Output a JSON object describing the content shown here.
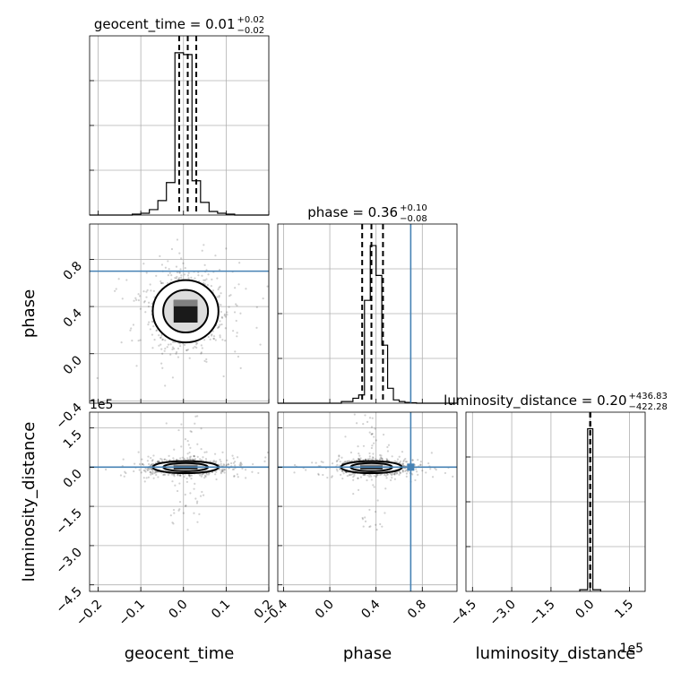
{
  "chart_data": {
    "type": "corner",
    "parameters": [
      "geocent_time",
      "phase",
      "luminosity_distance"
    ],
    "truth_color": "#4682b4",
    "truths": {
      "geocent_time": null,
      "phase": 0.7,
      "luminosity_distance": 0
    },
    "panels": {
      "geocent_time_hist": {
        "title_main": "geocent_time = 0.01",
        "title_sup": "+0.02",
        "title_sub": "−0.02",
        "xlim": [
          -0.22,
          0.2
        ],
        "bins_edges": [
          -0.22,
          -0.2,
          -0.18,
          -0.16,
          -0.14,
          -0.12,
          -0.1,
          -0.08,
          -0.06,
          -0.04,
          -0.02,
          0.0,
          0.02,
          0.04,
          0.06,
          0.08,
          0.1,
          0.12,
          0.14,
          0.16,
          0.18,
          0.2
        ],
        "counts": [
          0,
          0,
          0,
          0,
          0,
          0.5,
          1,
          3,
          8,
          18,
          90,
          89,
          19,
          7,
          2,
          1,
          0.5,
          0,
          0,
          0,
          0
        ],
        "ymax": 92,
        "quantiles": [
          -0.01,
          0.01,
          0.03
        ]
      },
      "phase_hist": {
        "title_main": "phase = 0.36",
        "title_sup": "+0.10",
        "title_sub": "−0.08",
        "xlim": [
          -0.45,
          1.1
        ],
        "bins_edges": [
          -0.45,
          -0.4,
          -0.35,
          -0.3,
          -0.25,
          -0.2,
          -0.15,
          -0.1,
          -0.05,
          0.0,
          0.05,
          0.1,
          0.15,
          0.2,
          0.25,
          0.3,
          0.35,
          0.4,
          0.45,
          0.5,
          0.55,
          0.6,
          0.65,
          0.7,
          0.75,
          0.8,
          0.85,
          0.9,
          0.95,
          1.0,
          1.05,
          1.1
        ],
        "counts": [
          0,
          0,
          0,
          0,
          0,
          0,
          0,
          0,
          0,
          0,
          0,
          1,
          1,
          3,
          5,
          62,
          95,
          77,
          35,
          9,
          2,
          1,
          0.5,
          0.3,
          0,
          0,
          0,
          0,
          0,
          0,
          0
        ],
        "ymax": 100,
        "quantiles": [
          0.28,
          0.36,
          0.46
        ]
      },
      "lumdist_hist": {
        "title_main": "luminosity_distance = 0.20",
        "title_sup": "+436.83",
        "title_sub": "−422.28",
        "xlim": [
          -4.75,
          2.1
        ],
        "offset_label": "1e5",
        "bins_edges": [
          -0.4,
          -0.1,
          0.1,
          0.4
        ],
        "counts": [
          1,
          98,
          1
        ],
        "ymax": 100,
        "quantiles": [
          -0.004,
          0.0,
          0.004
        ]
      },
      "phase_vs_geocent": {
        "xlim": [
          -0.22,
          0.2
        ],
        "ylim": [
          -0.42,
          1.1
        ],
        "center": [
          0.005,
          0.36
        ],
        "spread": [
          0.035,
          0.12
        ]
      },
      "lumdist_vs_geocent": {
        "xlim": [
          -0.22,
          0.2
        ],
        "ylim": [
          -4.75,
          2.1
        ],
        "offset_label": "1e5",
        "center": [
          0.005,
          0.0
        ],
        "spread": [
          0.035,
          0.35
        ]
      },
      "lumdist_vs_phase": {
        "xlim": [
          -0.45,
          1.1
        ],
        "ylim": [
          -4.75,
          2.1
        ],
        "center": [
          0.36,
          0.0
        ],
        "spread": [
          0.12,
          0.35
        ]
      }
    },
    "axes": {
      "geocent_time": {
        "xlabel": "geocent_time",
        "ticks": [
          -0.2,
          -0.1,
          0.0,
          0.1,
          0.2
        ],
        "tick_labels": [
          "−0.2",
          "−0.1",
          "0.0",
          "0.1",
          "0.2"
        ]
      },
      "phase": {
        "xlabel": "phase",
        "ylabel": "phase",
        "ticks": [
          -0.4,
          0.0,
          0.4,
          0.8
        ],
        "tick_labels": [
          "−0.4",
          "0.0",
          "0.4",
          "0.8"
        ]
      },
      "luminosity_distance": {
        "xlabel": "luminosity_distance",
        "ylabel": "luminosity_distance",
        "ticks": [
          -4.5,
          -3.0,
          -1.5,
          0.0,
          1.5
        ],
        "tick_labels": [
          "−4.5",
          "−3.0",
          "−1.5",
          "0.0",
          "1.5"
        ],
        "offset_label": "1e5"
      }
    },
    "grid": true
  }
}
